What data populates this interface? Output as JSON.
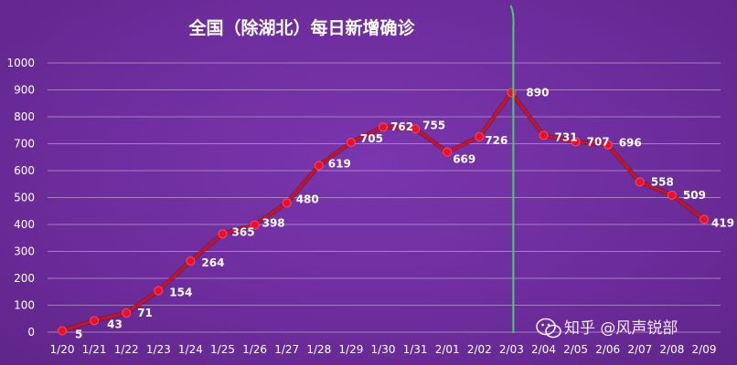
{
  "chart_data": {
    "type": "line",
    "title": "全国（除湖北）每日新增确诊",
    "categories": [
      "1/20",
      "1/21",
      "1/22",
      "1/23",
      "1/24",
      "1/25",
      "1/26",
      "1/27",
      "1/28",
      "1/29",
      "1/30",
      "1/31",
      "2/01",
      "2/02",
      "2/03",
      "2/04",
      "2/05",
      "2/06",
      "2/07",
      "2/08",
      "2/09"
    ],
    "values": [
      5,
      43,
      71,
      154,
      264,
      365,
      398,
      480,
      619,
      705,
      762,
      755,
      669,
      726,
      890,
      731,
      707,
      696,
      558,
      509,
      419
    ],
    "ylim": [
      0,
      1000
    ],
    "yticks": [
      0,
      100,
      200,
      300,
      400,
      500,
      600,
      700,
      800,
      900,
      1000
    ],
    "xlabel": "",
    "ylabel": "",
    "grid": true,
    "line_color": "#c0142a",
    "marker_color": "#e8102a",
    "marker_vline_category": "2/03",
    "marker_vline_color": "#3fd36a"
  },
  "watermark": {
    "text": "知乎 @风声锐部",
    "icon": "wechat-icon"
  }
}
